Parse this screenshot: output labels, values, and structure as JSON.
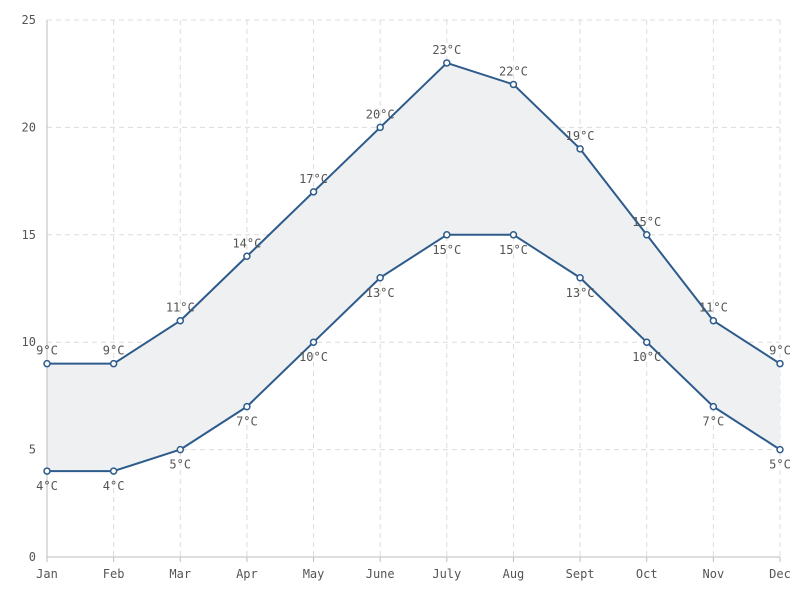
{
  "chart_data": {
    "type": "area",
    "categories": [
      "Jan",
      "Feb",
      "Mar",
      "Apr",
      "May",
      "June",
      "July",
      "Aug",
      "Sept",
      "Oct",
      "Nov",
      "Dec"
    ],
    "series": [
      {
        "values": [
          9,
          9,
          11,
          14,
          17,
          20,
          23,
          22,
          19,
          15,
          11,
          9
        ],
        "labels": [
          "9°C",
          "9°C",
          "11°C",
          "14°C",
          "17°C",
          "20°C",
          "23°C",
          "22°C",
          "19°C",
          "15°C",
          "11°C",
          "9°C"
        ]
      },
      {
        "values": [
          4,
          4,
          5,
          7,
          10,
          13,
          15,
          15,
          13,
          10,
          7,
          5
        ],
        "labels": [
          "4°C",
          "4°C",
          "5°C",
          "7°C",
          "10°C",
          "13°C",
          "15°C",
          "15°C",
          "13°C",
          "10°C",
          "7°C",
          "5°C"
        ]
      }
    ],
    "ylim": [
      0,
      25
    ],
    "yticks": [
      "0",
      "5",
      "10",
      "15",
      "20",
      "25"
    ],
    "grid": true,
    "title": "",
    "xlabel": "",
    "ylabel": "",
    "colors": {
      "line": "#2d5b8c",
      "band": "#eef0f1",
      "grid": "#dcdcdc"
    }
  }
}
